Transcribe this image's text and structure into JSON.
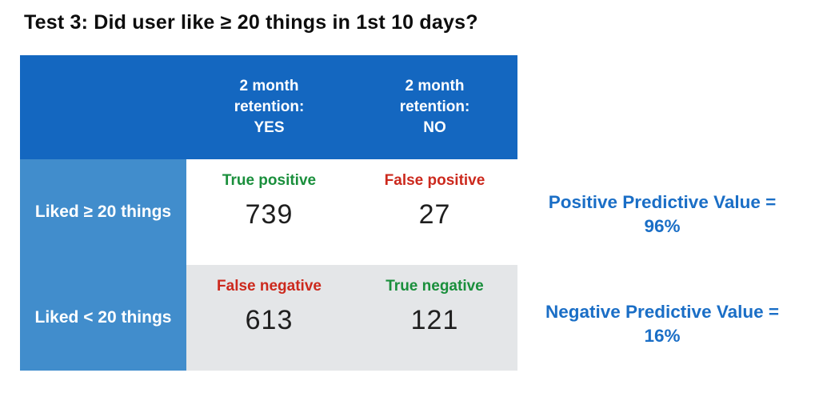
{
  "title": "Test 3: Did user like ≥ 20 things in 1st 10 days?",
  "colors": {
    "header_bg": "#1467c0",
    "row_label_bg": "#418dcc",
    "row1_bg": "#ffffff",
    "row2_bg": "#e4e6e8",
    "positive_text": "#1a8f3c",
    "negative_text": "#cc291d",
    "annotation_text": "#1a6ec6"
  },
  "matrix": {
    "column_headers": [
      "2 month\nretention:\nYES",
      "2 month\nretention:\nNO"
    ],
    "rows": [
      {
        "label": "Liked ≥ 20 things",
        "cells": [
          {
            "tag": "True positive",
            "tag_color": "#1a8f3c",
            "value": "739"
          },
          {
            "tag": "False positive",
            "tag_color": "#cc291d",
            "value": "27"
          }
        ]
      },
      {
        "label": "Liked < 20 things",
        "cells": [
          {
            "tag": "False negative",
            "tag_color": "#cc291d",
            "value": "613"
          },
          {
            "tag": "True negative",
            "tag_color": "#1a8f3c",
            "value": "121"
          }
        ]
      }
    ]
  },
  "annotations": [
    {
      "label": "Positive Predictive Value =",
      "value": "96%"
    },
    {
      "label": "Negative Predictive Value =",
      "value": "16%"
    }
  ],
  "chart_data": {
    "type": "table",
    "title": "Test 3: Did user like ≥ 20 things in 1st 10 days?",
    "columns": [
      "",
      "2 month retention: YES",
      "2 month retention: NO"
    ],
    "rows": [
      [
        "Liked ≥ 20 things",
        739,
        27
      ],
      [
        "Liked < 20 things",
        613,
        121
      ]
    ],
    "cell_labels": [
      [
        "True positive",
        "False positive"
      ],
      [
        "False negative",
        "True negative"
      ]
    ],
    "derived_metrics": [
      {
        "label": "Positive Predictive Value",
        "value": "96%"
      },
      {
        "label": "Negative Predictive Value",
        "value": "16%"
      }
    ]
  }
}
